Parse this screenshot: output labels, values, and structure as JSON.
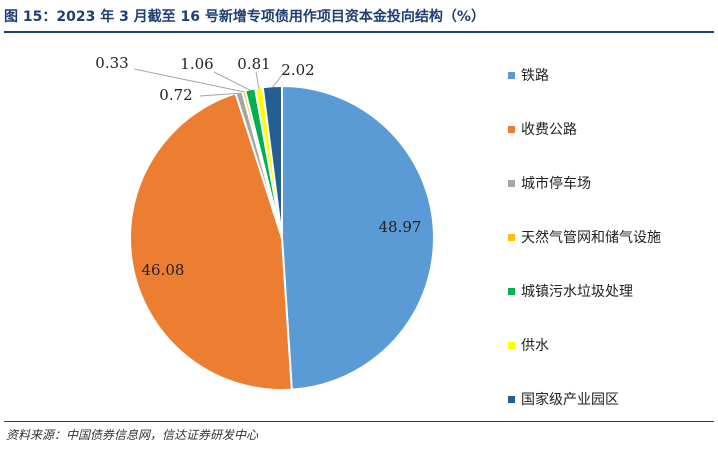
{
  "title": "图 15：2023 年 3 月截至 16 号新增专项债用作项目资本金投向结构（%）",
  "source": "资料来源：中国债券信息网，信达证券研发中心",
  "chart_data": {
    "type": "pie",
    "title": "图 15：2023 年 3 月截至 16 号新增专项债用作项目资本金投向结构（%）",
    "unit": "%",
    "legend_position": "right",
    "start_angle_deg": 0,
    "direction": "clockwise",
    "slices": [
      {
        "label": "铁路",
        "value": 48.97,
        "display": "48.97",
        "color": "#5b9bd5"
      },
      {
        "label": "收费公路",
        "value": 46.08,
        "display": "46.08",
        "color": "#ed7d31"
      },
      {
        "label": "城市停车场",
        "value": 0.72,
        "display": "0.72",
        "color": "#a5a5a5"
      },
      {
        "label": "天然气管网和储气设施",
        "value": 0.33,
        "display": "0.33",
        "color": "#ffc000"
      },
      {
        "label": "城镇污水垃圾处理",
        "value": 1.06,
        "display": "1.06",
        "color": "#00b050"
      },
      {
        "label": "供水",
        "value": 0.81,
        "display": "0.81",
        "color": "#ffff00"
      },
      {
        "label": "国家级产业园区",
        "value": 2.02,
        "display": "2.02",
        "color": "#255e91"
      }
    ]
  }
}
